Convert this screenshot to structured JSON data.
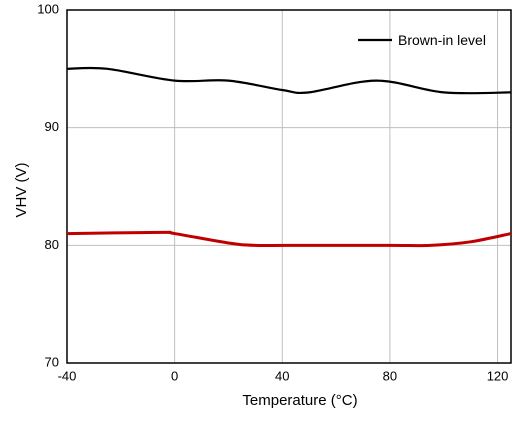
{
  "chart_data": {
    "type": "line",
    "x_label": "Temperature (°C)",
    "y_label": "VHV (V)",
    "series": [
      {
        "name": "Brown-in level",
        "color": "#000000",
        "x": [
          -40,
          -25,
          0,
          20,
          40,
          50,
          75,
          100,
          125
        ],
        "values": [
          95,
          95,
          94,
          94,
          93.2,
          93,
          94,
          93,
          93
        ]
      },
      {
        "color": "#c00000",
        "x": [
          -40,
          -5,
          0,
          20,
          30,
          50,
          80,
          95,
          110,
          125
        ],
        "values": [
          81,
          81.1,
          81,
          80.2,
          80,
          80,
          80,
          80,
          80.3,
          81
        ]
      }
    ],
    "xlim": [
      -40,
      125
    ],
    "xticks": [
      -40,
      0,
      40,
      80,
      120
    ],
    "ylim": [
      70,
      100
    ],
    "yticks": [
      70,
      80,
      90,
      100
    ],
    "grid": true,
    "legend": "upper right"
  }
}
